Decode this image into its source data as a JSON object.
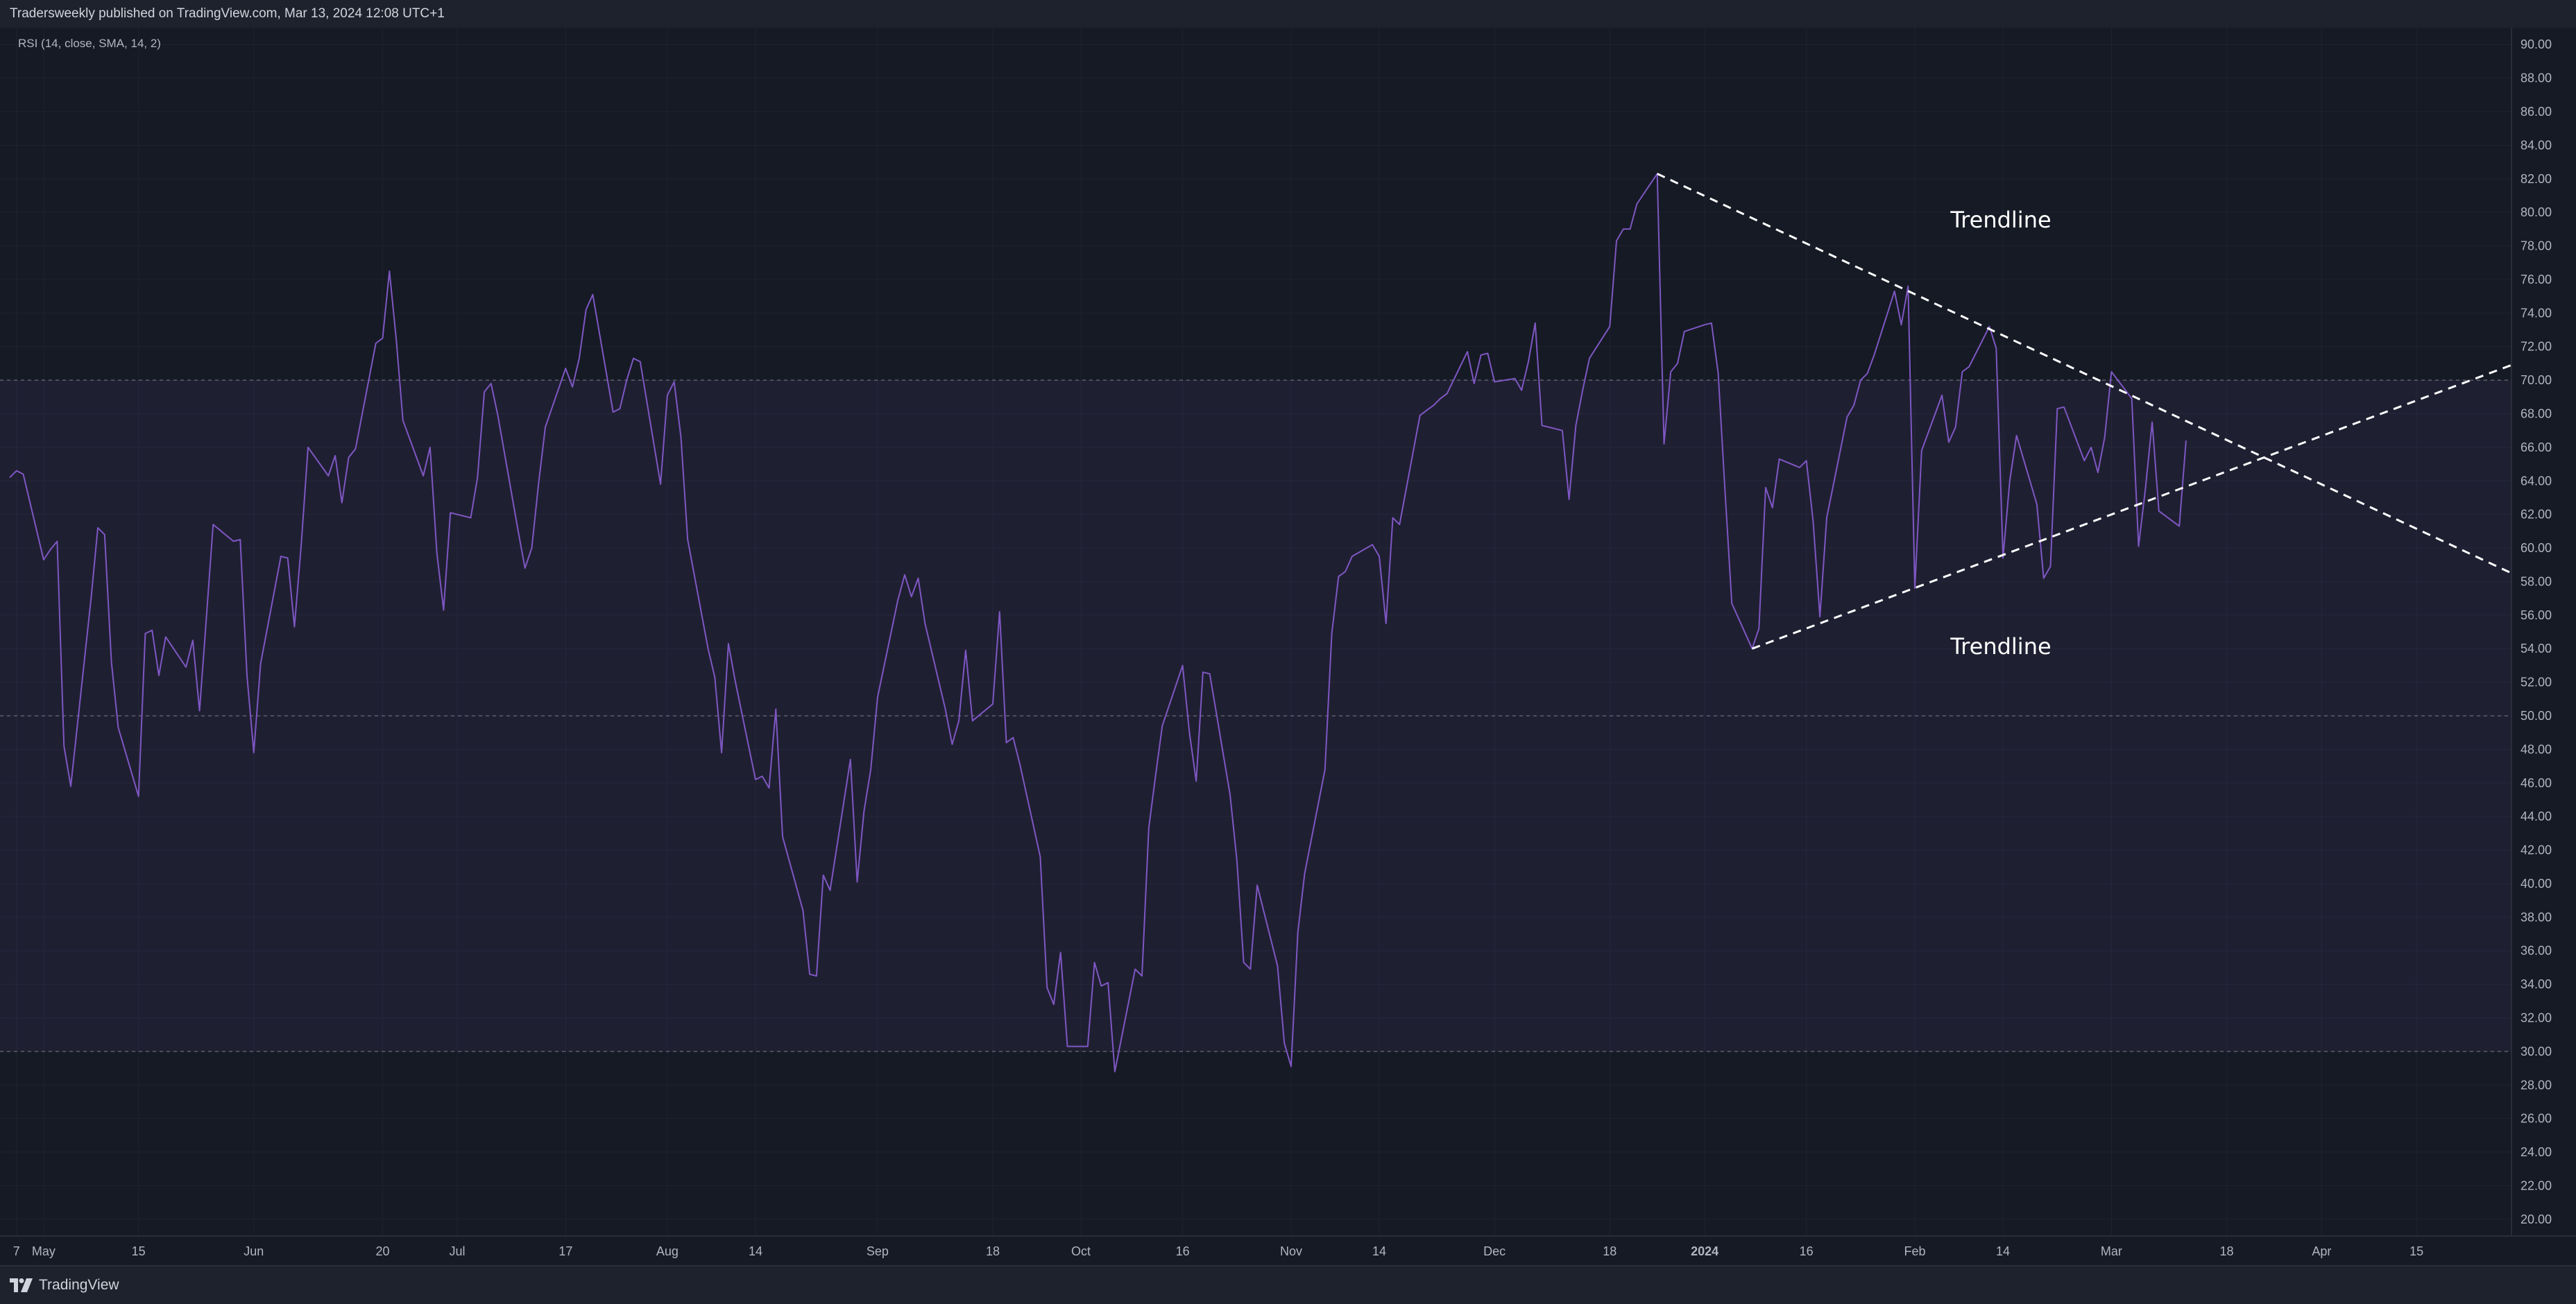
{
  "header": {
    "text": "Tradersweekly published on TradingView.com, Mar 13, 2024 12:08 UTC+1"
  },
  "indicator": {
    "label": "RSI (14, close, SMA, 14, 2)"
  },
  "footer": {
    "brand": "TradingView"
  },
  "colors": {
    "background": "#161a25",
    "rsi_line": "#7e57c2",
    "band_fill": "#7e57c2",
    "trendline": "#ffffff",
    "grid": "#1f2330",
    "level_line": "#5d606b",
    "axis_text": "#b2b5be"
  },
  "chart_data": {
    "type": "line",
    "title": "",
    "xlabel": "",
    "ylabel": "",
    "ylim": [
      19,
      91
    ],
    "y_ticks": [
      "20.00",
      "22.00",
      "24.00",
      "26.00",
      "28.00",
      "30.00",
      "32.00",
      "34.00",
      "36.00",
      "38.00",
      "40.00",
      "42.00",
      "44.00",
      "46.00",
      "48.00",
      "50.00",
      "52.00",
      "54.00",
      "56.00",
      "58.00",
      "60.00",
      "62.00",
      "64.00",
      "66.00",
      "68.00",
      "70.00",
      "72.00",
      "74.00",
      "76.00",
      "78.00",
      "80.00",
      "82.00",
      "84.00",
      "86.00",
      "88.00",
      "90.00"
    ],
    "x_range": [
      "2023-04-26",
      "2024-04-29"
    ],
    "x_ticks": [
      {
        "date": "2023-04-27",
        "label": "7"
      },
      {
        "date": "2023-05-01",
        "label": "May"
      },
      {
        "date": "2023-05-15",
        "label": "15"
      },
      {
        "date": "2023-06-01",
        "label": "Jun"
      },
      {
        "date": "2023-06-20",
        "label": "20"
      },
      {
        "date": "2023-07-01",
        "label": "Jul"
      },
      {
        "date": "2023-07-17",
        "label": "17"
      },
      {
        "date": "2023-08-01",
        "label": "Aug"
      },
      {
        "date": "2023-08-14",
        "label": "14"
      },
      {
        "date": "2023-09-01",
        "label": "Sep"
      },
      {
        "date": "2023-09-18",
        "label": "18"
      },
      {
        "date": "2023-10-01",
        "label": "Oct"
      },
      {
        "date": "2023-10-16",
        "label": "16"
      },
      {
        "date": "2023-11-01",
        "label": "Nov"
      },
      {
        "date": "2023-11-14",
        "label": "14"
      },
      {
        "date": "2023-12-01",
        "label": "Dec"
      },
      {
        "date": "2023-12-18",
        "label": "18"
      },
      {
        "date": "2024-01-01",
        "label": "2024"
      },
      {
        "date": "2024-01-16",
        "label": "16"
      },
      {
        "date": "2024-02-01",
        "label": "Feb"
      },
      {
        "date": "2024-02-14",
        "label": "14"
      },
      {
        "date": "2024-03-01",
        "label": "Mar"
      },
      {
        "date": "2024-03-18",
        "label": "18"
      },
      {
        "date": "2024-04-01",
        "label": "Apr"
      },
      {
        "date": "2024-04-15",
        "label": "15"
      }
    ],
    "band": {
      "upper": 70,
      "lower": 30,
      "middle": 50
    },
    "series": [
      {
        "values": [
          [
            "2023-04-26",
            64.2
          ],
          [
            "2023-04-27",
            64.6
          ],
          [
            "2023-04-28",
            64.4
          ],
          [
            "2023-05-01",
            59.3
          ],
          [
            "2023-05-02",
            59.9
          ],
          [
            "2023-05-03",
            60.4
          ],
          [
            "2023-05-04",
            48.2
          ],
          [
            "2023-05-05",
            45.8
          ],
          [
            "2023-05-08",
            57.0
          ],
          [
            "2023-05-09",
            61.2
          ],
          [
            "2023-05-10",
            60.8
          ],
          [
            "2023-05-11",
            53.2
          ],
          [
            "2023-05-12",
            49.3
          ],
          [
            "2023-05-15",
            45.2
          ],
          [
            "2023-05-16",
            54.9
          ],
          [
            "2023-05-17",
            55.1
          ],
          [
            "2023-05-18",
            52.4
          ],
          [
            "2023-05-19",
            54.7
          ],
          [
            "2023-05-22",
            52.9
          ],
          [
            "2023-05-23",
            54.5
          ],
          [
            "2023-05-24",
            50.3
          ],
          [
            "2023-05-25",
            55.8
          ],
          [
            "2023-05-26",
            61.4
          ],
          [
            "2023-05-29",
            60.4
          ],
          [
            "2023-05-30",
            60.5
          ],
          [
            "2023-05-31",
            52.4
          ],
          [
            "2023-06-01",
            47.8
          ],
          [
            "2023-06-02",
            53.1
          ],
          [
            "2023-06-05",
            59.5
          ],
          [
            "2023-06-06",
            59.4
          ],
          [
            "2023-06-07",
            55.3
          ],
          [
            "2023-06-08",
            60.2
          ],
          [
            "2023-06-09",
            66.0
          ],
          [
            "2023-06-12",
            64.3
          ],
          [
            "2023-06-13",
            65.5
          ],
          [
            "2023-06-14",
            62.7
          ],
          [
            "2023-06-15",
            65.4
          ],
          [
            "2023-06-16",
            65.9
          ],
          [
            "2023-06-19",
            72.2
          ],
          [
            "2023-06-20",
            72.5
          ],
          [
            "2023-06-21",
            76.5
          ],
          [
            "2023-06-22",
            72.5
          ],
          [
            "2023-06-23",
            67.6
          ],
          [
            "2023-06-26",
            64.3
          ],
          [
            "2023-06-27",
            66.0
          ],
          [
            "2023-06-28",
            59.7
          ],
          [
            "2023-06-29",
            56.3
          ],
          [
            "2023-06-30",
            62.1
          ],
          [
            "2023-07-03",
            61.8
          ],
          [
            "2023-07-04",
            64.2
          ],
          [
            "2023-07-05",
            69.3
          ],
          [
            "2023-07-06",
            69.8
          ],
          [
            "2023-07-07",
            67.9
          ],
          [
            "2023-07-10",
            61.0
          ],
          [
            "2023-07-11",
            58.8
          ],
          [
            "2023-07-12",
            60.0
          ],
          [
            "2023-07-13",
            63.8
          ],
          [
            "2023-07-14",
            67.2
          ],
          [
            "2023-07-17",
            70.7
          ],
          [
            "2023-07-18",
            69.6
          ],
          [
            "2023-07-19",
            71.3
          ],
          [
            "2023-07-20",
            74.2
          ],
          [
            "2023-07-21",
            75.1
          ],
          [
            "2023-07-24",
            68.1
          ],
          [
            "2023-07-25",
            68.3
          ],
          [
            "2023-07-26",
            70.0
          ],
          [
            "2023-07-27",
            71.3
          ],
          [
            "2023-07-28",
            71.1
          ],
          [
            "2023-07-31",
            63.8
          ],
          [
            "2023-08-01",
            69.1
          ],
          [
            "2023-08-02",
            69.9
          ],
          [
            "2023-08-03",
            66.6
          ],
          [
            "2023-08-04",
            60.5
          ],
          [
            "2023-08-07",
            54.0
          ],
          [
            "2023-08-08",
            52.3
          ],
          [
            "2023-08-09",
            47.8
          ],
          [
            "2023-08-10",
            54.3
          ],
          [
            "2023-08-11",
            52.1
          ],
          [
            "2023-08-14",
            46.2
          ],
          [
            "2023-08-15",
            46.4
          ],
          [
            "2023-08-16",
            45.7
          ],
          [
            "2023-08-17",
            50.4
          ],
          [
            "2023-08-18",
            42.8
          ],
          [
            "2023-08-21",
            38.4
          ],
          [
            "2023-08-22",
            34.6
          ],
          [
            "2023-08-23",
            34.5
          ],
          [
            "2023-08-24",
            40.5
          ],
          [
            "2023-08-25",
            39.6
          ],
          [
            "2023-08-28",
            47.4
          ],
          [
            "2023-08-29",
            40.1
          ],
          [
            "2023-08-30",
            44.3
          ],
          [
            "2023-08-31",
            46.8
          ],
          [
            "2023-09-01",
            51.1
          ],
          [
            "2023-09-04",
            56.9
          ],
          [
            "2023-09-05",
            58.4
          ],
          [
            "2023-09-06",
            57.1
          ],
          [
            "2023-09-07",
            58.2
          ],
          [
            "2023-09-08",
            55.5
          ],
          [
            "2023-09-11",
            50.4
          ],
          [
            "2023-09-12",
            48.3
          ],
          [
            "2023-09-13",
            49.7
          ],
          [
            "2023-09-14",
            53.9
          ],
          [
            "2023-09-15",
            49.7
          ],
          [
            "2023-09-18",
            50.7
          ],
          [
            "2023-09-19",
            56.2
          ],
          [
            "2023-09-20",
            48.4
          ],
          [
            "2023-09-21",
            48.7
          ],
          [
            "2023-09-22",
            47.1
          ],
          [
            "2023-09-25",
            41.6
          ],
          [
            "2023-09-26",
            33.8
          ],
          [
            "2023-09-27",
            32.8
          ],
          [
            "2023-09-28",
            35.9
          ],
          [
            "2023-09-29",
            30.3
          ],
          [
            "2023-10-02",
            30.3
          ],
          [
            "2023-10-03",
            35.3
          ],
          [
            "2023-10-04",
            33.9
          ],
          [
            "2023-10-05",
            34.1
          ],
          [
            "2023-10-06",
            28.8
          ],
          [
            "2023-10-09",
            34.9
          ],
          [
            "2023-10-10",
            34.5
          ],
          [
            "2023-10-11",
            43.3
          ],
          [
            "2023-10-12",
            46.4
          ],
          [
            "2023-10-13",
            49.4
          ],
          [
            "2023-10-16",
            53.0
          ],
          [
            "2023-10-17",
            49.0
          ],
          [
            "2023-10-18",
            46.1
          ],
          [
            "2023-10-19",
            52.6
          ],
          [
            "2023-10-20",
            52.5
          ],
          [
            "2023-10-23",
            45.3
          ],
          [
            "2023-10-24",
            41.4
          ],
          [
            "2023-10-25",
            35.3
          ],
          [
            "2023-10-26",
            34.9
          ],
          [
            "2023-10-27",
            39.9
          ],
          [
            "2023-10-30",
            35.1
          ],
          [
            "2023-10-31",
            30.5
          ],
          [
            "2023-11-01",
            29.1
          ],
          [
            "2023-11-02",
            37.1
          ],
          [
            "2023-11-03",
            40.6
          ],
          [
            "2023-11-06",
            46.8
          ],
          [
            "2023-11-07",
            54.9
          ],
          [
            "2023-11-08",
            58.3
          ],
          [
            "2023-11-09",
            58.6
          ],
          [
            "2023-11-10",
            59.5
          ],
          [
            "2023-11-13",
            60.2
          ],
          [
            "2023-11-14",
            59.5
          ],
          [
            "2023-11-15",
            55.5
          ],
          [
            "2023-11-16",
            61.8
          ],
          [
            "2023-11-17",
            61.4
          ],
          [
            "2023-11-20",
            67.9
          ],
          [
            "2023-11-21",
            68.2
          ],
          [
            "2023-11-22",
            68.5
          ],
          [
            "2023-11-23",
            68.9
          ],
          [
            "2023-11-24",
            69.2
          ],
          [
            "2023-11-27",
            71.7
          ],
          [
            "2023-11-28",
            69.8
          ],
          [
            "2023-11-29",
            71.5
          ],
          [
            "2023-11-30",
            71.6
          ],
          [
            "2023-12-01",
            69.9
          ],
          [
            "2023-12-04",
            70.1
          ],
          [
            "2023-12-05",
            69.4
          ],
          [
            "2023-12-06",
            71.1
          ],
          [
            "2023-12-07",
            73.4
          ],
          [
            "2023-12-08",
            67.3
          ],
          [
            "2023-12-11",
            67.0
          ],
          [
            "2023-12-12",
            62.9
          ],
          [
            "2023-12-13",
            67.3
          ],
          [
            "2023-12-14",
            69.4
          ],
          [
            "2023-12-15",
            71.3
          ],
          [
            "2023-12-18",
            73.2
          ],
          [
            "2023-12-19",
            78.3
          ],
          [
            "2023-12-20",
            79.0
          ],
          [
            "2023-12-21",
            79.0
          ],
          [
            "2023-12-22",
            80.5
          ],
          [
            "2023-12-25",
            82.3
          ],
          [
            "2023-12-26",
            66.2
          ],
          [
            "2023-12-27",
            70.5
          ],
          [
            "2023-12-28",
            71.0
          ],
          [
            "2023-12-29",
            72.9
          ],
          [
            "2024-01-01",
            73.3
          ],
          [
            "2024-01-02",
            73.4
          ],
          [
            "2024-01-03",
            70.4
          ],
          [
            "2024-01-04",
            63.4
          ],
          [
            "2024-01-05",
            56.7
          ],
          [
            "2024-01-08",
            54.0
          ],
          [
            "2024-01-09",
            55.2
          ],
          [
            "2024-01-10",
            63.6
          ],
          [
            "2024-01-11",
            62.4
          ],
          [
            "2024-01-12",
            65.3
          ],
          [
            "2024-01-15",
            64.8
          ],
          [
            "2024-01-16",
            65.2
          ],
          [
            "2024-01-17",
            61.6
          ],
          [
            "2024-01-18",
            55.9
          ],
          [
            "2024-01-19",
            61.8
          ],
          [
            "2024-01-22",
            67.8
          ],
          [
            "2024-01-23",
            68.5
          ],
          [
            "2024-01-24",
            70.0
          ],
          [
            "2024-01-25",
            70.4
          ],
          [
            "2024-01-26",
            71.5
          ],
          [
            "2024-01-29",
            75.3
          ],
          [
            "2024-01-30",
            73.3
          ],
          [
            "2024-01-31",
            75.6
          ],
          [
            "2024-02-01",
            57.6
          ],
          [
            "2024-02-02",
            65.8
          ],
          [
            "2024-02-05",
            69.1
          ],
          [
            "2024-02-06",
            66.3
          ],
          [
            "2024-02-07",
            67.2
          ],
          [
            "2024-02-08",
            70.5
          ],
          [
            "2024-02-09",
            70.8
          ],
          [
            "2024-02-12",
            73.2
          ],
          [
            "2024-02-13",
            71.9
          ],
          [
            "2024-02-14",
            59.4
          ],
          [
            "2024-02-15",
            64.0
          ],
          [
            "2024-02-16",
            66.7
          ],
          [
            "2024-02-19",
            62.6
          ],
          [
            "2024-02-20",
            58.2
          ],
          [
            "2024-02-21",
            58.9
          ],
          [
            "2024-02-22",
            68.3
          ],
          [
            "2024-02-23",
            68.4
          ],
          [
            "2024-02-26",
            65.2
          ],
          [
            "2024-02-27",
            66.0
          ],
          [
            "2024-02-28",
            64.5
          ],
          [
            "2024-02-29",
            66.6
          ],
          [
            "2024-03-01",
            70.5
          ],
          [
            "2024-03-04",
            68.9
          ],
          [
            "2024-03-05",
            60.1
          ],
          [
            "2024-03-06",
            63.5
          ],
          [
            "2024-03-07",
            67.5
          ],
          [
            "2024-03-08",
            62.2
          ],
          [
            "2024-03-11",
            61.3
          ],
          [
            "2024-03-12",
            66.4
          ]
        ]
      }
    ],
    "trendlines": [
      {
        "label": "Trendline",
        "from": [
          "2023-12-25",
          82.3
        ],
        "to": [
          "2024-04-29",
          58.5
        ]
      },
      {
        "label": "Trendline",
        "from": [
          "2024-01-08",
          54.0
        ],
        "to": [
          "2024-04-29",
          70.9
        ]
      }
    ]
  }
}
